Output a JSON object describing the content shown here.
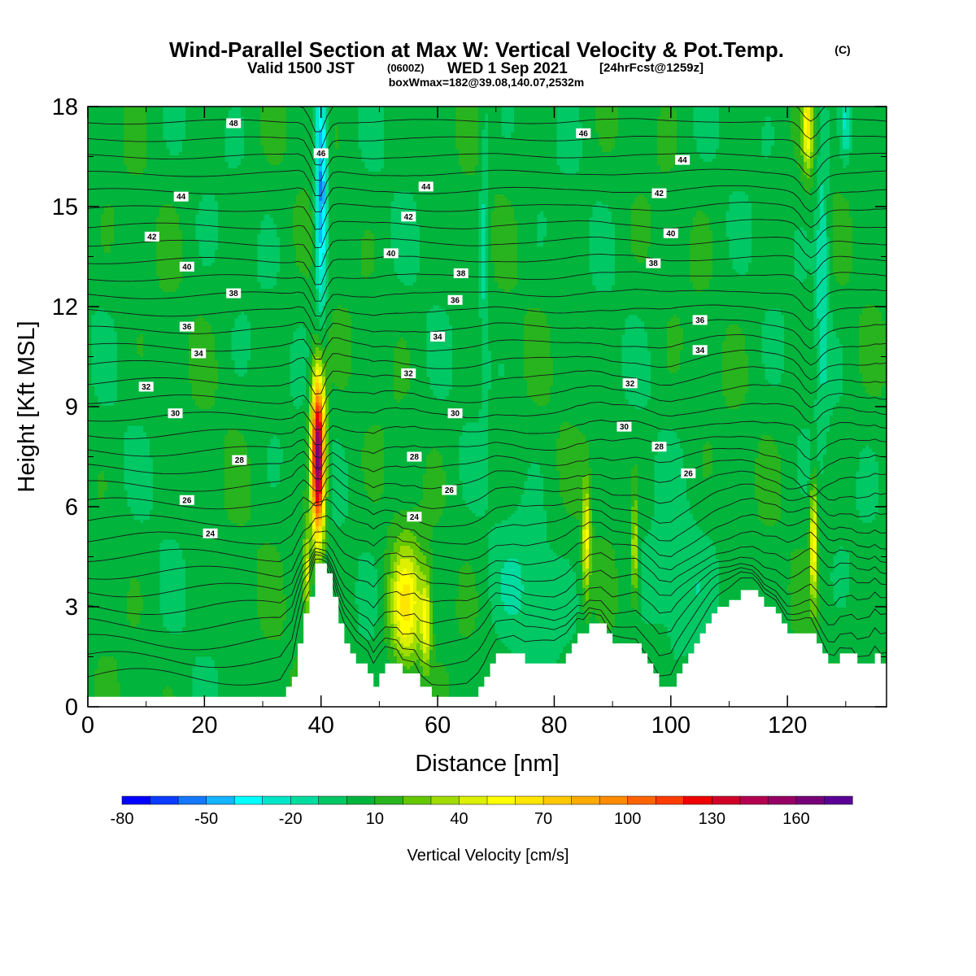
{
  "chart_data": {
    "type": "heatmap",
    "title": "Wind-Parallel Section at Max W: Vertical Velocity & Pot.Temp.",
    "title_mark": "(C)",
    "subtitle_main": "Valid 1500 JST",
    "subtitle_z": "(0600Z)",
    "subtitle_date": "WED 1 Sep 2021",
    "subtitle_fcst": "[24hrFcst@1259z]",
    "subtitle2": "boxWmax=182@39.08,140.07,2532m",
    "xlabel": "Distance [nm]",
    "ylabel": "Height [Kft MSL]",
    "xlim": [
      0,
      137
    ],
    "ylim": [
      0,
      18
    ],
    "x_ticks": [
      0,
      20,
      40,
      60,
      80,
      100,
      120
    ],
    "y_ticks": [
      0,
      3,
      6,
      9,
      12,
      15,
      18
    ],
    "colorbar": {
      "label": "Vertical Velocity [cm/s]",
      "min": -80,
      "max": 180,
      "step": 10,
      "tick_labels": [
        -80,
        -50,
        -20,
        10,
        40,
        70,
        100,
        130,
        160
      ],
      "colors": [
        "#0000ff",
        "#0a3cff",
        "#1478ff",
        "#14b4ff",
        "#00ffff",
        "#00e6c8",
        "#00dca0",
        "#00c864",
        "#00b43c",
        "#28b41e",
        "#64c800",
        "#a0dc00",
        "#dcf000",
        "#ffff00",
        "#ffe600",
        "#ffc800",
        "#ffaa00",
        "#ff8c00",
        "#ff6400",
        "#ff3c00",
        "#f00000",
        "#d20028",
        "#b40050",
        "#960064",
        "#780078",
        "#5a0096"
      ]
    },
    "terrain_profile": [
      [
        0,
        0.3
      ],
      [
        5,
        0.3
      ],
      [
        10,
        0.3
      ],
      [
        15,
        0.3
      ],
      [
        20,
        0.3
      ],
      [
        25,
        0.3
      ],
      [
        30,
        0.3
      ],
      [
        33,
        0.3
      ],
      [
        34,
        0.6
      ],
      [
        35,
        0.9
      ],
      [
        36,
        1.9
      ],
      [
        37,
        2.8
      ],
      [
        38,
        3.3
      ],
      [
        39,
        4.3
      ],
      [
        40,
        4.3
      ],
      [
        41,
        4.0
      ],
      [
        42,
        3.3
      ],
      [
        43,
        2.5
      ],
      [
        44,
        1.9
      ],
      [
        45,
        1.6
      ],
      [
        46,
        1.3
      ],
      [
        48,
        1.0
      ],
      [
        49,
        0.6
      ],
      [
        50,
        1.0
      ],
      [
        51,
        1.3
      ],
      [
        53,
        1.3
      ],
      [
        54,
        1.0
      ],
      [
        55,
        1.0
      ],
      [
        56,
        1.0
      ],
      [
        57,
        0.6
      ],
      [
        59,
        0.3
      ],
      [
        61,
        0.3
      ],
      [
        63,
        0.3
      ],
      [
        65,
        0.3
      ],
      [
        67,
        0.6
      ],
      [
        68,
        0.9
      ],
      [
        69,
        1.3
      ],
      [
        70,
        1.6
      ],
      [
        73,
        1.6
      ],
      [
        75,
        1.3
      ],
      [
        78,
        1.3
      ],
      [
        80,
        1.3
      ],
      [
        82,
        1.6
      ],
      [
        83,
        1.9
      ],
      [
        84,
        2.2
      ],
      [
        85,
        2.2
      ],
      [
        86,
        2.5
      ],
      [
        88,
        2.5
      ],
      [
        89,
        2.2
      ],
      [
        90,
        1.9
      ],
      [
        92,
        1.9
      ],
      [
        94,
        1.9
      ],
      [
        95,
        1.6
      ],
      [
        96,
        1.3
      ],
      [
        97,
        1.0
      ],
      [
        98,
        0.6
      ],
      [
        100,
        0.6
      ],
      [
        101,
        1.0
      ],
      [
        102,
        1.3
      ],
      [
        103,
        1.6
      ],
      [
        104,
        1.9
      ],
      [
        105,
        2.2
      ],
      [
        106,
        2.5
      ],
      [
        107,
        2.8
      ],
      [
        108,
        3.0
      ],
      [
        110,
        3.2
      ],
      [
        112,
        3.5
      ],
      [
        114,
        3.5
      ],
      [
        115,
        3.3
      ],
      [
        116,
        3.0
      ],
      [
        118,
        2.8
      ],
      [
        119,
        2.5
      ],
      [
        120,
        2.2
      ],
      [
        122,
        2.2
      ],
      [
        124,
        2.2
      ],
      [
        125,
        1.9
      ],
      [
        126,
        1.6
      ],
      [
        127,
        1.3
      ],
      [
        128,
        1.3
      ],
      [
        129,
        1.6
      ],
      [
        131,
        1.6
      ],
      [
        132,
        1.3
      ],
      [
        134,
        1.3
      ],
      [
        135,
        1.6
      ],
      [
        136,
        1.3
      ],
      [
        137,
        1.3
      ]
    ],
    "w_features": [
      {
        "x": 39.5,
        "y": 7.5,
        "sx": 0.8,
        "sy": 1.7,
        "w": 165
      },
      {
        "x": 40.0,
        "y": 15.5,
        "sx": 0.7,
        "sy": 2.6,
        "w": -60
      },
      {
        "x": 54.5,
        "y": 3.0,
        "sx": 2.0,
        "sy": 1.3,
        "w": 55
      },
      {
        "x": 58.0,
        "y": 2.5,
        "sx": 0.6,
        "sy": 1.0,
        "w": 40
      },
      {
        "x": 37.5,
        "y": 4.0,
        "sx": 0.4,
        "sy": 1.0,
        "w": 45
      },
      {
        "x": 85.5,
        "y": 5.0,
        "sx": 0.5,
        "sy": 1.2,
        "w": 45
      },
      {
        "x": 93.8,
        "y": 4.6,
        "sx": 0.4,
        "sy": 1.1,
        "w": 40
      },
      {
        "x": 124.5,
        "y": 5.0,
        "sx": 0.4,
        "sy": 1.3,
        "w": 55
      },
      {
        "x": 123.5,
        "y": 17.5,
        "sx": 0.6,
        "sy": 1.0,
        "w": 50
      },
      {
        "x": 126.0,
        "y": 13.5,
        "sx": 0.8,
        "sy": 3.0,
        "w": -25
      },
      {
        "x": 130.0,
        "y": 17.5,
        "sx": 0.6,
        "sy": 0.8,
        "w": -25
      },
      {
        "x": 68.0,
        "y": 14.0,
        "sx": 0.6,
        "sy": 3.0,
        "w": -20
      },
      {
        "x": 100.0,
        "y": 3.5,
        "sx": 4.0,
        "sy": 1.5,
        "w": -12
      },
      {
        "x": 75.0,
        "y": 3.5,
        "sx": 4.0,
        "sy": 1.5,
        "w": -12
      }
    ],
    "theta_labels": [
      {
        "x": 25,
        "y": 17.5,
        "value": "48"
      },
      {
        "x": 40,
        "y": 16.6,
        "value": "46"
      },
      {
        "x": 85,
        "y": 17.2,
        "value": "46"
      },
      {
        "x": 16,
        "y": 15.3,
        "value": "44"
      },
      {
        "x": 58,
        "y": 15.6,
        "value": "44"
      },
      {
        "x": 102,
        "y": 16.4,
        "value": "44"
      },
      {
        "x": 11,
        "y": 14.1,
        "value": "42"
      },
      {
        "x": 55,
        "y": 14.7,
        "value": "42"
      },
      {
        "x": 98,
        "y": 15.4,
        "value": "42"
      },
      {
        "x": 17,
        "y": 13.2,
        "value": "40"
      },
      {
        "x": 52,
        "y": 13.6,
        "value": "40"
      },
      {
        "x": 100,
        "y": 14.2,
        "value": "40"
      },
      {
        "x": 25,
        "y": 12.4,
        "value": "38"
      },
      {
        "x": 64,
        "y": 13.0,
        "value": "38"
      },
      {
        "x": 97,
        "y": 13.3,
        "value": "38"
      },
      {
        "x": 17,
        "y": 11.4,
        "value": "36"
      },
      {
        "x": 63,
        "y": 12.2,
        "value": "36"
      },
      {
        "x": 105,
        "y": 11.6,
        "value": "36"
      },
      {
        "x": 19,
        "y": 10.6,
        "value": "34"
      },
      {
        "x": 60,
        "y": 11.1,
        "value": "34"
      },
      {
        "x": 105,
        "y": 10.7,
        "value": "34"
      },
      {
        "x": 10,
        "y": 9.6,
        "value": "32"
      },
      {
        "x": 55,
        "y": 10.0,
        "value": "32"
      },
      {
        "x": 93,
        "y": 9.7,
        "value": "32"
      },
      {
        "x": 15,
        "y": 8.8,
        "value": "30"
      },
      {
        "x": 63,
        "y": 8.8,
        "value": "30"
      },
      {
        "x": 92,
        "y": 8.4,
        "value": "30"
      },
      {
        "x": 26,
        "y": 7.4,
        "value": "28"
      },
      {
        "x": 56,
        "y": 7.5,
        "value": "28"
      },
      {
        "x": 98,
        "y": 7.8,
        "value": "28"
      },
      {
        "x": 17,
        "y": 6.2,
        "value": "26"
      },
      {
        "x": 62,
        "y": 6.5,
        "value": "26"
      },
      {
        "x": 103,
        "y": 7.0,
        "value": "26"
      },
      {
        "x": 21,
        "y": 5.2,
        "value": "24"
      },
      {
        "x": 56,
        "y": 5.7,
        "value": "24"
      }
    ]
  }
}
